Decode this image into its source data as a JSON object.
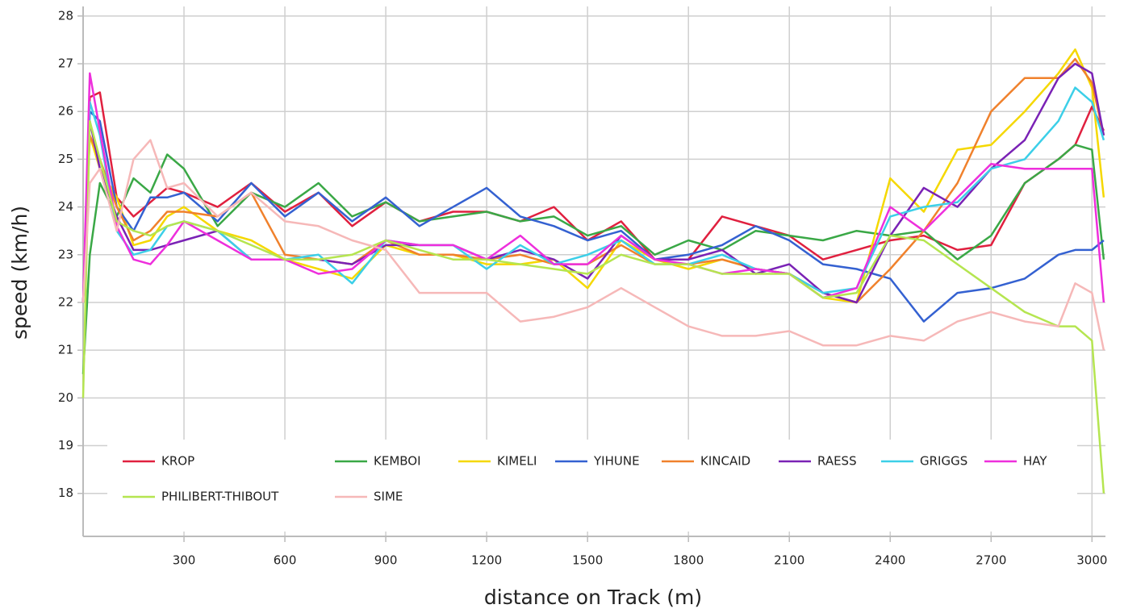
{
  "chart_data": {
    "type": "line",
    "x_label": "distance on Track (m)",
    "y_label": "speed (km/h)",
    "x": [
      0,
      20,
      50,
      100,
      150,
      200,
      250,
      300,
      400,
      500,
      600,
      700,
      800,
      900,
      1000,
      1100,
      1200,
      1300,
      1400,
      1500,
      1600,
      1700,
      1800,
      1900,
      2000,
      2100,
      2200,
      2300,
      2400,
      2500,
      2600,
      2700,
      2800,
      2900,
      2950,
      3000,
      3035
    ],
    "xlim": [
      0,
      3040
    ],
    "ylim": [
      17.1,
      28.2
    ],
    "xticks": [
      300,
      600,
      900,
      1200,
      1500,
      1800,
      2100,
      2400,
      2700,
      3000
    ],
    "yticks": [
      18,
      19,
      20,
      21,
      22,
      23,
      24,
      25,
      26,
      27,
      28
    ],
    "grid": true,
    "legend": "bottom-left",
    "series": [
      {
        "name": "KROP",
        "color": "#e0203f",
        "values": [
          22,
          26.3,
          26.4,
          24.2,
          23.8,
          24.1,
          24.4,
          24.3,
          24.0,
          24.5,
          23.9,
          24.3,
          23.6,
          24.1,
          23.7,
          23.9,
          23.9,
          23.7,
          24.0,
          23.3,
          23.7,
          22.9,
          22.9,
          23.8,
          23.6,
          23.4,
          22.9,
          23.1,
          23.3,
          23.4,
          23.1,
          23.2,
          24.5,
          25.0,
          25.3,
          26.1,
          25.6
        ]
      },
      {
        "name": "KEMBOI",
        "color": "#3aa846",
        "values": [
          20.5,
          23,
          24.5,
          23.8,
          24.6,
          24.3,
          25.1,
          24.8,
          23.6,
          24.3,
          24.0,
          24.5,
          23.8,
          24.1,
          23.7,
          23.8,
          23.9,
          23.7,
          23.8,
          23.4,
          23.6,
          23.0,
          23.3,
          23.1,
          23.5,
          23.4,
          23.3,
          23.5,
          23.4,
          23.5,
          22.9,
          23.4,
          24.5,
          25.0,
          25.3,
          25.2,
          22.9
        ]
      },
      {
        "name": "KIMELI",
        "color": "#f5d800",
        "values": [
          22,
          25.5,
          24.8,
          24.2,
          23.2,
          23.3,
          23.8,
          24.0,
          23.5,
          23.3,
          22.9,
          22.7,
          22.5,
          23.2,
          23.0,
          23.0,
          22.8,
          22.8,
          22.9,
          22.3,
          23.3,
          22.9,
          22.7,
          22.9,
          22.7,
          22.6,
          22.1,
          22.0,
          24.6,
          23.9,
          25.2,
          25.3,
          26.0,
          26.8,
          27.3,
          26.5,
          24.2
        ]
      },
      {
        "name": "YIHUNE",
        "color": "#3461d1",
        "values": [
          22,
          26,
          25.8,
          24.0,
          23.5,
          24.2,
          24.2,
          24.3,
          23.7,
          24.5,
          23.8,
          24.3,
          23.7,
          24.2,
          23.6,
          24.0,
          24.4,
          23.8,
          23.6,
          23.3,
          23.5,
          22.9,
          23.0,
          23.2,
          23.6,
          23.3,
          22.8,
          22.7,
          22.5,
          21.6,
          22.2,
          22.3,
          22.5,
          23.0,
          23.1,
          23.1,
          23.3
        ]
      },
      {
        "name": "KINCAID",
        "color": "#f0812c",
        "values": [
          22,
          25.5,
          25.0,
          24.0,
          23.3,
          23.5,
          23.9,
          23.9,
          23.8,
          24.3,
          23.0,
          22.9,
          22.8,
          23.3,
          23.0,
          23.0,
          22.9,
          23.0,
          22.8,
          22.8,
          23.2,
          22.8,
          22.8,
          22.9,
          22.7,
          22.6,
          22.2,
          22.0,
          22.7,
          23.5,
          24.5,
          26.0,
          26.7,
          26.7,
          27.1,
          26.6,
          25.5
        ]
      },
      {
        "name": "RAESS",
        "color": "#7a22b5",
        "values": [
          22,
          25.8,
          24.8,
          23.8,
          23.1,
          23.1,
          23.2,
          23.3,
          23.5,
          22.9,
          22.9,
          22.9,
          22.8,
          23.2,
          23.2,
          23.2,
          22.9,
          23.1,
          22.9,
          22.5,
          23.4,
          22.9,
          22.9,
          23.1,
          22.6,
          22.8,
          22.2,
          22.0,
          23.4,
          24.4,
          24.0,
          24.8,
          25.4,
          26.7,
          27.0,
          26.8,
          25.5
        ]
      },
      {
        "name": "GRIGGS",
        "color": "#3ccfe8",
        "values": [
          22,
          26.2,
          25.5,
          23.5,
          23.0,
          23.1,
          23.6,
          23.7,
          23.5,
          22.9,
          22.9,
          23.0,
          22.4,
          23.3,
          23.2,
          23.2,
          22.7,
          23.2,
          22.8,
          23.0,
          23.3,
          22.8,
          22.8,
          23.0,
          22.7,
          22.6,
          22.2,
          22.3,
          23.8,
          24.0,
          24.1,
          24.8,
          25.0,
          25.8,
          26.5,
          26.2,
          25.4
        ]
      },
      {
        "name": "HAY",
        "color": "#ee2fdc",
        "values": [
          22,
          26.8,
          25.6,
          23.6,
          22.9,
          22.8,
          23.2,
          23.7,
          23.3,
          22.9,
          22.9,
          22.6,
          22.7,
          23.3,
          23.2,
          23.2,
          22.9,
          23.4,
          22.8,
          22.8,
          23.4,
          22.9,
          22.8,
          22.6,
          22.7,
          22.6,
          22.1,
          22.3,
          24.0,
          23.5,
          24.2,
          24.9,
          24.8,
          24.8,
          24.8,
          24.8,
          22.0
        ]
      },
      {
        "name": "PHILIBERT-THIBOUT",
        "color": "#b5e550",
        "values": [
          20,
          25.8,
          25.0,
          23.7,
          23.5,
          23.4,
          23.6,
          23.7,
          23.5,
          23.2,
          22.9,
          22.9,
          23.0,
          23.3,
          23.1,
          22.9,
          22.9,
          22.8,
          22.7,
          22.6,
          23.0,
          22.8,
          22.8,
          22.6,
          22.6,
          22.6,
          22.1,
          22.2,
          23.4,
          23.3,
          22.8,
          22.3,
          21.8,
          21.5,
          21.5,
          21.2,
          18.0
        ]
      },
      {
        "name": "SIME",
        "color": "#f6b8b8",
        "values": [
          22,
          24.5,
          24.8,
          23.5,
          25.0,
          25.4,
          24.4,
          24.5,
          23.8,
          24.3,
          23.7,
          23.6,
          23.3,
          23.1,
          22.2,
          22.2,
          22.2,
          21.6,
          21.7,
          21.9,
          22.3,
          21.9,
          21.5,
          21.3,
          21.3,
          21.4,
          21.1,
          21.1,
          21.3,
          21.2,
          21.6,
          21.8,
          21.6,
          21.5,
          22.4,
          22.2,
          21.0
        ]
      }
    ]
  }
}
